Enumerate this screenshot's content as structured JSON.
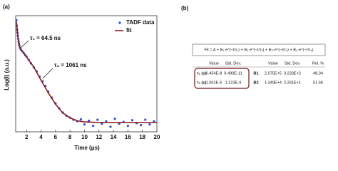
{
  "panel_labels": [
    "(a)",
    "(b)"
  ],
  "chart_data": {
    "type": "scatter",
    "x_label": "Time (μs)",
    "y_label": "Log(I) (a.u.)",
    "log_y": true,
    "legend": "top-right",
    "xlim": [
      0.5,
      20
    ],
    "xticks": [
      2,
      4,
      6,
      8,
      10,
      12,
      14,
      16,
      18,
      20
    ],
    "ylim": [
      1,
      10000
    ],
    "annotations": [
      "τ₁ = 64.5 ns",
      "τ₂ = 1061 ns"
    ],
    "series": [
      {
        "name": "TADF data",
        "color": "#2f4fd0",
        "kind": "points",
        "x": [
          0.6,
          0.65,
          0.7,
          0.75,
          0.8,
          0.85,
          0.9,
          0.95,
          1.0,
          1.1,
          1.2,
          1.4,
          1.6,
          1.8,
          2.0,
          2.3,
          2.6,
          3.0,
          3.4,
          3.8,
          4.2,
          4.6,
          5.0,
          5.5,
          6.0,
          6.5,
          7.0,
          7.5,
          8.0,
          8.5,
          9.0,
          9.5,
          10,
          10.6,
          11.2,
          11.8,
          12.4,
          13,
          13.6,
          14.2,
          14.8,
          15.4,
          16,
          16.6,
          17.2,
          17.8,
          18.4,
          19,
          19.6
        ],
        "values": [
          7000,
          4500,
          3300,
          2600,
          2000,
          1600,
          1300,
          1100,
          930,
          780,
          690,
          600,
          520,
          440,
          390,
          300,
          230,
          165,
          120,
          80,
          55,
          38,
          24,
          15,
          9.5,
          6.5,
          4.6,
          3.6,
          3.1,
          2.6,
          2.3,
          2.7,
          1.8,
          2.4,
          1.6,
          2.6,
          1.9,
          2.3,
          1.5,
          2.8,
          1.9,
          2.2,
          1.6,
          2.5,
          2.0,
          1.7,
          2.6,
          1.8,
          2.3
        ]
      },
      {
        "name": "fit",
        "color": "#8b1a1a",
        "kind": "line",
        "x": [
          0.6,
          0.7,
          0.8,
          0.9,
          1.0,
          1.2,
          1.5,
          2,
          2.5,
          3,
          4,
          5,
          6,
          7,
          8,
          9,
          10,
          12,
          14,
          16,
          18,
          20
        ],
        "values": [
          6300,
          3500,
          2000,
          1300,
          900,
          700,
          560,
          380,
          250,
          170,
          60,
          22,
          9,
          4.5,
          3,
          2.4,
          2.2,
          2.1,
          2.1,
          2.1,
          2.1,
          2.1
        ]
      }
    ]
  },
  "table": {
    "formula": "Fit = A + B₁·e^(−t/τ₁) + B₂·e^(−t/τ₂) + B₃·e^(−t/τ₃) + B₄·e^(−t/τ₄)",
    "header": [
      "Value",
      "Std. Dev.",
      "Value",
      "Std. Dev.",
      "Rel. %"
    ],
    "rows": [
      [
        "τ₁ (s)",
        "6.454E-8",
        "9.490E-11",
        "B1",
        "2.075E+5",
        "3.233E+2",
        "48.34"
      ],
      [
        "τ₂ (s)",
        "1.061E-6",
        "1.223E-9",
        "B2",
        "1.349E+4",
        "2.331E+1",
        "51.66"
      ]
    ]
  }
}
